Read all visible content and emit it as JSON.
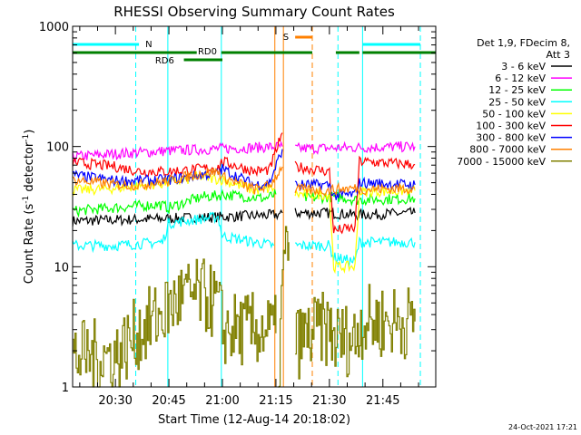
{
  "chart_data": {
    "type": "line",
    "title": "RHESSI Observing Summary Count Rates",
    "xlabel": "Start Time (12-Aug-14 20:18:02)",
    "ylabel_parts": [
      "Count Rate (s",
      "-1",
      " detector",
      "-1",
      ")"
    ],
    "y_scale": "log",
    "ylim": [
      1,
      1000
    ],
    "y_ticks": [
      {
        "value": 1,
        "label": "1"
      },
      {
        "value": 10,
        "label": "10"
      },
      {
        "value": 100,
        "label": "100"
      },
      {
        "value": 1000,
        "label": "1000"
      }
    ],
    "xlim_minutes": [
      20.3,
      21.997
    ],
    "x_ticks": [
      {
        "value": 20.5,
        "label": "20:30"
      },
      {
        "value": 20.75,
        "label": "20:45"
      },
      {
        "value": 21.0,
        "label": "21:00"
      },
      {
        "value": 21.25,
        "label": "21:15"
      },
      {
        "value": 21.5,
        "label": "21:30"
      },
      {
        "value": 21.75,
        "label": "21:45"
      }
    ],
    "legend": {
      "placement": "right",
      "header": [
        "Det 1,9, FDecim 8,",
        "Att 3"
      ],
      "entries": [
        {
          "label": "3 - 6 keV",
          "color": "#000000"
        },
        {
          "label": "6 - 12 keV",
          "color": "#ff00ff"
        },
        {
          "label": "12 - 25 keV",
          "color": "#00ff00"
        },
        {
          "label": "25 - 50 keV",
          "color": "#00ffff"
        },
        {
          "label": "50 - 100 keV",
          "color": "#ffff00"
        },
        {
          "label": "100 - 300 keV",
          "color": "#ff0000"
        },
        {
          "label": "300 - 800 keV",
          "color": "#0000ff"
        },
        {
          "label": "800 - 7000 keV",
          "color": "#ff8000"
        },
        {
          "label": "7000 - 15000 keV",
          "color": "#808000"
        }
      ]
    },
    "series": [
      {
        "name": "3 - 6 keV",
        "color": "#000000",
        "segments": [
          [
            [
              20.3,
              24
            ],
            [
              20.7,
              25
            ],
            [
              21.0,
              26
            ],
            [
              21.25,
              27
            ],
            [
              21.28,
              28
            ]
          ],
          [
            [
              21.34,
              28
            ],
            [
              21.5,
              28
            ],
            [
              21.62,
              27
            ],
            [
              21.9,
              28
            ]
          ]
        ]
      },
      {
        "name": "6 - 12 keV",
        "color": "#ff00ff",
        "segments": [
          [
            [
              20.3,
              82
            ],
            [
              20.5,
              87
            ],
            [
              20.75,
              92
            ],
            [
              21.0,
              96
            ],
            [
              21.15,
              98
            ],
            [
              21.28,
              100
            ]
          ],
          [
            [
              21.34,
              96
            ],
            [
              21.5,
              97
            ],
            [
              21.62,
              98
            ],
            [
              21.9,
              100
            ]
          ]
        ]
      },
      {
        "name": "12 - 25 keV",
        "color": "#00ff00",
        "segments": [
          [
            [
              20.3,
              29
            ],
            [
              20.5,
              31
            ],
            [
              20.7,
              33
            ],
            [
              20.75,
              31
            ],
            [
              20.9,
              38
            ],
            [
              20.98,
              39
            ],
            [
              21.0,
              40
            ],
            [
              21.2,
              37
            ],
            [
              21.25,
              40
            ]
          ],
          [
            [
              21.38,
              37
            ],
            [
              21.5,
              38
            ],
            [
              21.55,
              38
            ],
            [
              21.62,
              36
            ],
            [
              21.9,
              37
            ]
          ]
        ]
      },
      {
        "name": "25 - 50 keV",
        "color": "#00ffff",
        "segments": [
          [
            [
              20.3,
              15
            ],
            [
              20.5,
              15
            ],
            [
              20.72,
              16
            ],
            [
              20.75,
              23
            ],
            [
              20.9,
              25
            ],
            [
              20.98,
              26
            ],
            [
              21.0,
              18
            ],
            [
              21.15,
              16
            ],
            [
              21.24,
              15
            ]
          ],
          [
            [
              21.34,
              15
            ],
            [
              21.5,
              15
            ],
            [
              21.52,
              12
            ],
            [
              21.62,
              11
            ],
            [
              21.64,
              16
            ],
            [
              21.9,
              16
            ]
          ]
        ]
      },
      {
        "name": "50 - 100 keV",
        "color": "#ffff00",
        "segments": [
          [
            [
              20.3,
              43
            ],
            [
              20.5,
              45
            ],
            [
              20.75,
              50
            ],
            [
              20.9,
              56
            ],
            [
              21.0,
              53
            ],
            [
              21.15,
              43
            ],
            [
              21.24,
              45
            ]
          ],
          [
            [
              21.34,
              40
            ],
            [
              21.5,
              40
            ],
            [
              21.52,
              10
            ],
            [
              21.62,
              10
            ],
            [
              21.64,
              42
            ],
            [
              21.9,
              43
            ]
          ]
        ]
      },
      {
        "name": "100 - 300 keV",
        "color": "#ff0000",
        "segments": [
          [
            [
              20.3,
              74
            ],
            [
              20.5,
              68
            ],
            [
              20.62,
              62
            ],
            [
              20.75,
              62
            ],
            [
              20.85,
              64
            ],
            [
              20.98,
              67
            ],
            [
              21.0,
              75
            ],
            [
              21.15,
              62
            ],
            [
              21.22,
              64
            ],
            [
              21.28,
              130
            ]
          ],
          [
            [
              21.34,
              68
            ],
            [
              21.5,
              62
            ],
            [
              21.52,
              20
            ],
            [
              21.62,
              21
            ],
            [
              21.64,
              75
            ],
            [
              21.9,
              71
            ]
          ]
        ]
      },
      {
        "name": "300 - 800 keV",
        "color": "#0000ff",
        "segments": [
          [
            [
              20.3,
              58
            ],
            [
              20.5,
              52
            ],
            [
              20.62,
              52
            ],
            [
              20.75,
              53
            ],
            [
              20.9,
              58
            ],
            [
              20.98,
              60
            ],
            [
              21.0,
              65
            ],
            [
              21.15,
              48
            ],
            [
              21.22,
              50
            ],
            [
              21.28,
              95
            ]
          ],
          [
            [
              21.34,
              48
            ],
            [
              21.5,
              48
            ],
            [
              21.52,
              39
            ],
            [
              21.62,
              40
            ],
            [
              21.64,
              50
            ],
            [
              21.9,
              48
            ]
          ]
        ]
      },
      {
        "name": "800 - 7000 keV",
        "color": "#ff8000",
        "segments": [
          [
            [
              20.3,
              53
            ],
            [
              20.5,
              48
            ],
            [
              20.62,
              48
            ],
            [
              20.75,
              52
            ],
            [
              20.9,
              60
            ],
            [
              20.98,
              62
            ],
            [
              21.0,
              56
            ],
            [
              21.15,
              44
            ],
            [
              21.22,
              47
            ],
            [
              21.28,
              68
            ]
          ],
          [
            [
              21.34,
              44
            ],
            [
              21.5,
              43
            ],
            [
              21.52,
              44
            ],
            [
              21.62,
              45
            ],
            [
              21.64,
              44
            ],
            [
              21.9,
              45
            ]
          ]
        ]
      },
      {
        "name": "7000 - 15000 keV",
        "color": "#808000",
        "segments": [
          [
            [
              20.3,
              1.8
            ],
            [
              20.45,
              1.8
            ],
            [
              20.5,
              1.8
            ],
            [
              20.6,
              2.8
            ],
            [
              20.7,
              3.8
            ],
            [
              20.8,
              5.5
            ],
            [
              20.9,
              5.8
            ],
            [
              20.98,
              4.8
            ],
            [
              21.0,
              3.0
            ],
            [
              21.1,
              3.0
            ],
            [
              21.2,
              3.0
            ],
            [
              21.25,
              2.8
            ]
          ],
          [
            [
              21.26,
              1.0
            ],
            [
              21.28,
              8.0
            ],
            [
              21.3,
              15.0
            ],
            [
              21.31,
              16.0
            ]
          ],
          [
            [
              21.34,
              2.3
            ],
            [
              21.45,
              3.0
            ],
            [
              21.5,
              3.0
            ],
            [
              21.52,
              2.5
            ],
            [
              21.62,
              2.5
            ],
            [
              21.64,
              3.5
            ],
            [
              21.9,
              3.5
            ]
          ]
        ]
      }
    ],
    "vertical_lines": [
      {
        "t": 20.3,
        "color": "#00ffff",
        "style": "solid"
      },
      {
        "t": 20.595,
        "color": "#00ffff",
        "style": "dashed"
      },
      {
        "t": 20.745,
        "color": "#00ffff",
        "style": "solid"
      },
      {
        "t": 20.995,
        "color": "#00ffff",
        "style": "solid"
      },
      {
        "t": 21.245,
        "color": "#ff8000",
        "style": "solid"
      },
      {
        "t": 21.285,
        "color": "#ff8000",
        "style": "solid"
      },
      {
        "t": 21.42,
        "color": "#ff8000",
        "style": "dashed"
      },
      {
        "t": 21.54,
        "color": "#00ffff",
        "style": "dashed"
      },
      {
        "t": 21.655,
        "color": "#00ffff",
        "style": "solid"
      },
      {
        "t": 21.925,
        "color": "#00ffff",
        "style": "dashed"
      }
    ],
    "flags": [
      {
        "label": "N",
        "color": "#00ffff",
        "segments": [
          [
            20.3,
            20.61
          ],
          [
            21.655,
            21.925
          ]
        ],
        "label_at": 20.64,
        "label_side": "right",
        "level": 0
      },
      {
        "label": "S",
        "color": "#ff8000",
        "segments": [
          [
            21.34,
            21.42
          ]
        ],
        "label_at": 21.31,
        "label_side": "left",
        "level": 0
      },
      {
        "label": "RD0",
        "color": "#008000",
        "segments": [
          [
            20.3,
            20.88
          ],
          [
            20.995,
            21.42
          ],
          [
            21.53,
            21.64
          ],
          [
            21.655,
            21.997
          ]
        ],
        "label_at": 20.93,
        "label_side": "center",
        "level": 1
      },
      {
        "label": "RD6",
        "color": "#008000",
        "segments": [
          [
            20.82,
            21.0
          ]
        ],
        "label_at": 20.73,
        "label_side": "center",
        "level": 2
      }
    ],
    "footer_date": "24-Oct-2021 17:21"
  }
}
